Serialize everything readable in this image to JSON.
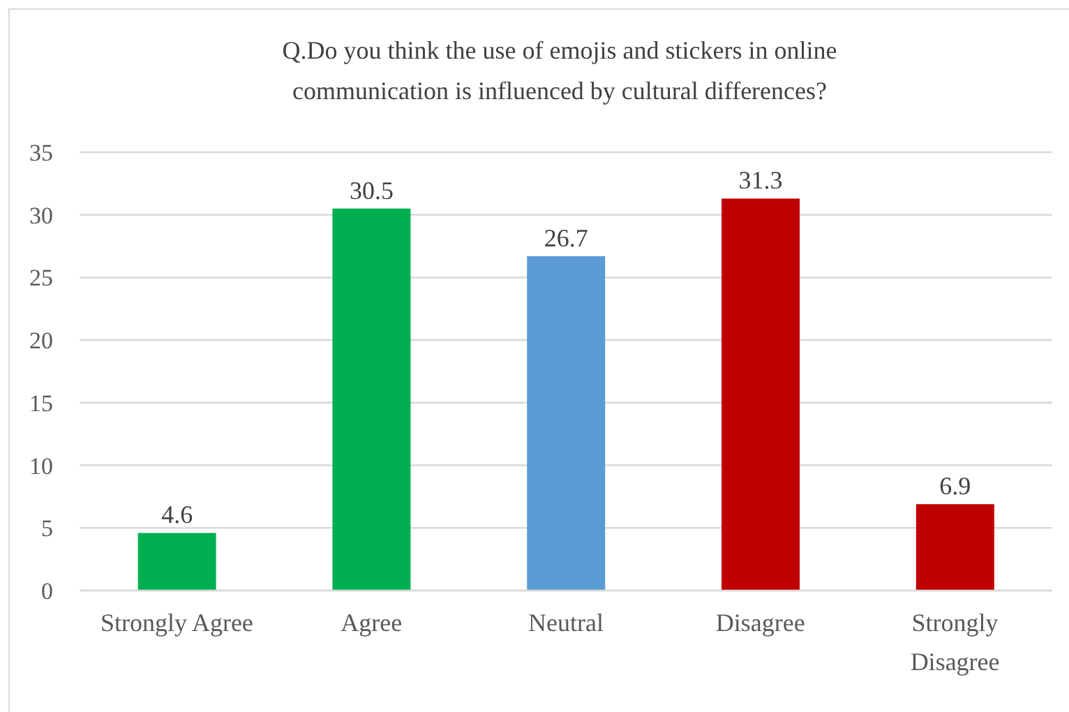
{
  "chart_data": {
    "type": "bar",
    "title": "Q.Do you think the use of emojis and stickers in online communication is influenced by cultural differences?",
    "categories": [
      "Strongly Agree",
      "Agree",
      "Neutral",
      "Disagree",
      "Strongly Disagree"
    ],
    "values": [
      4.6,
      30.5,
      26.7,
      31.3,
      6.9
    ],
    "colors": [
      "#00b050",
      "#00b050",
      "#5b9bd5",
      "#c00000",
      "#c00000"
    ],
    "ylim": [
      0,
      35
    ],
    "yticks": [
      0,
      5,
      10,
      15,
      20,
      25,
      30,
      35
    ],
    "grid": "y",
    "data_labels": true
  }
}
